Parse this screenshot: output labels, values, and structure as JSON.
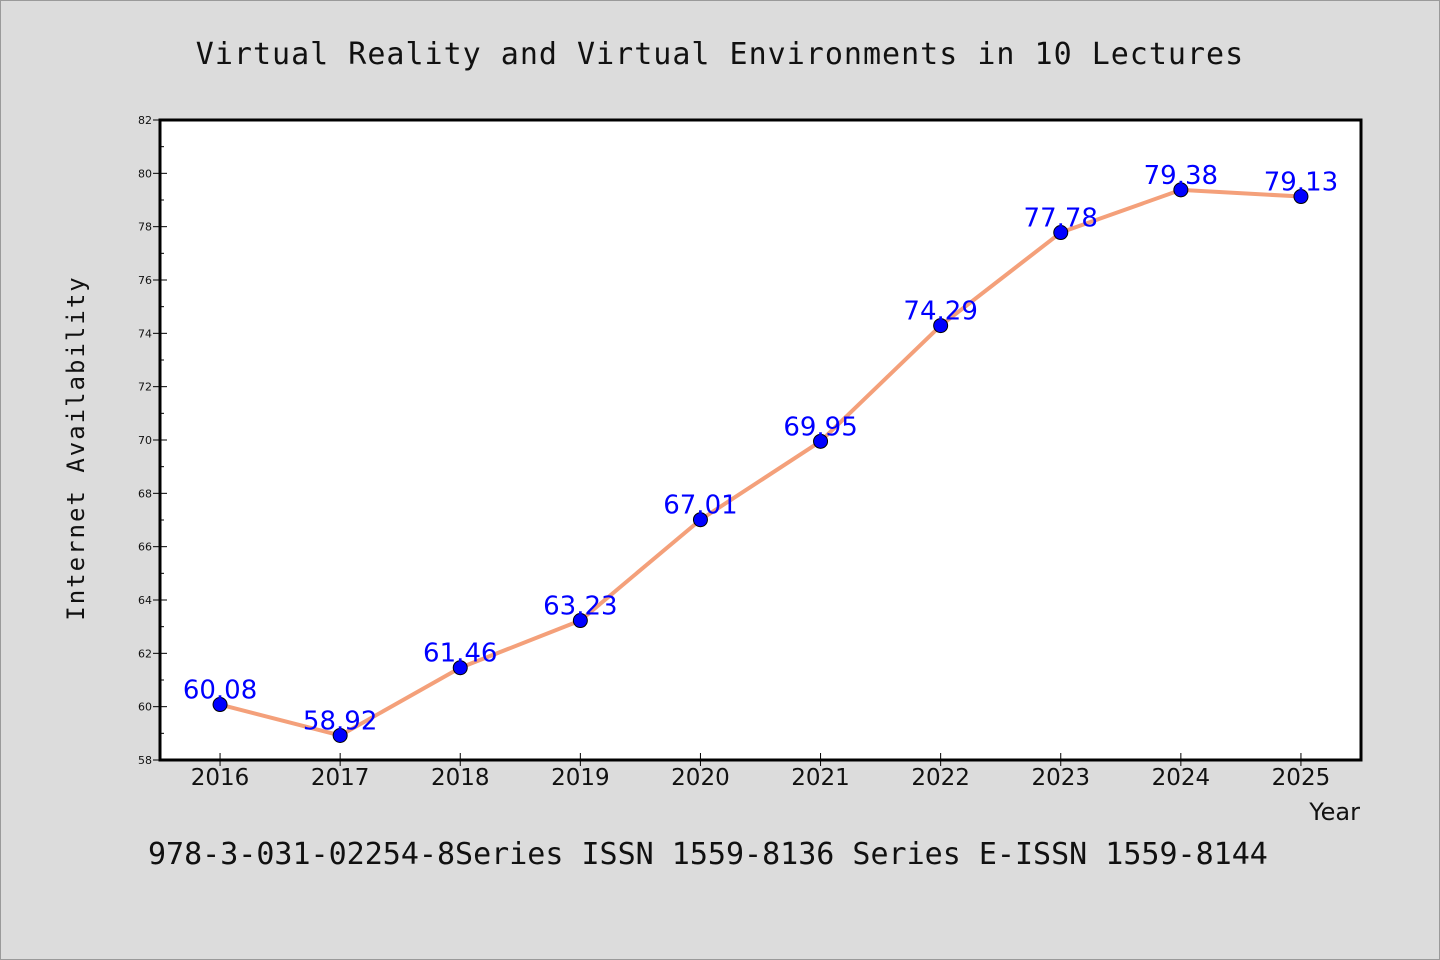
{
  "chart_data": {
    "type": "line",
    "title": "Virtual Reality and Virtual Environments in 10 Lectures",
    "xlabel": "Year",
    "ylabel": "Internet Availability",
    "categories": [
      "2016",
      "2017",
      "2018",
      "2019",
      "2020",
      "2021",
      "2022",
      "2023",
      "2024",
      "2025"
    ],
    "series": [
      {
        "values": [
          60.08,
          58.92,
          61.46,
          63.23,
          67.01,
          69.95,
          74.29,
          77.78,
          79.38,
          79.13
        ],
        "labels": [
          "60.08",
          "58.92",
          "61.46",
          "63.23",
          "67.01",
          "69.95",
          "74.29",
          "77.78",
          "79.38",
          "79.13"
        ]
      }
    ],
    "ylim": [
      58,
      82
    ],
    "yticks": [
      58,
      60,
      62,
      64,
      66,
      68,
      70,
      72,
      74,
      76,
      78,
      80,
      82
    ],
    "grid": false,
    "line_color": "#f4a07a",
    "marker_color": "#0000ff",
    "label_color": "#0000ff"
  },
  "footer": {
    "text": "978-3-031-02254-8Series ISSN 1559-8136 Series E-ISSN 1559-8144"
  },
  "colors": {
    "background": "#dcdcdc",
    "plot_background": "#ffffff"
  }
}
